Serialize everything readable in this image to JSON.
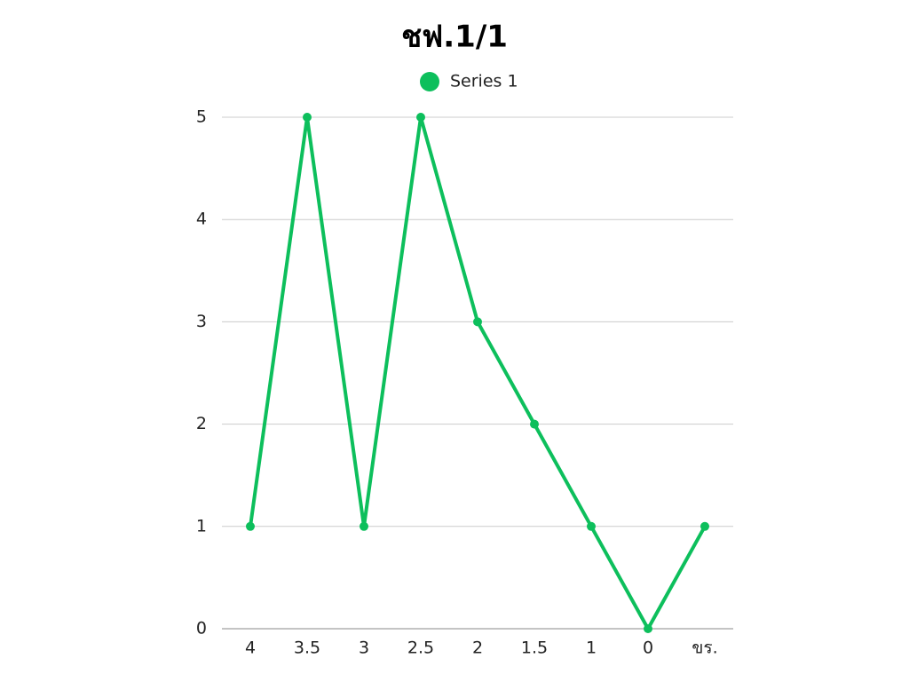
{
  "chart_data": {
    "type": "line",
    "title": "ชฟ.1/1",
    "categories": [
      "4",
      "3.5",
      "3",
      "2.5",
      "2",
      "1.5",
      "1",
      "0",
      "ขร."
    ],
    "series": [
      {
        "name": "Series 1",
        "color": "#0dbf5c",
        "values": [
          1,
          5,
          1,
          5,
          3,
          2,
          1,
          0,
          1
        ]
      }
    ],
    "ylim": [
      0,
      5
    ],
    "yticks": [
      0,
      1,
      2,
      3,
      4,
      5
    ],
    "grid": true,
    "legend": "top"
  }
}
